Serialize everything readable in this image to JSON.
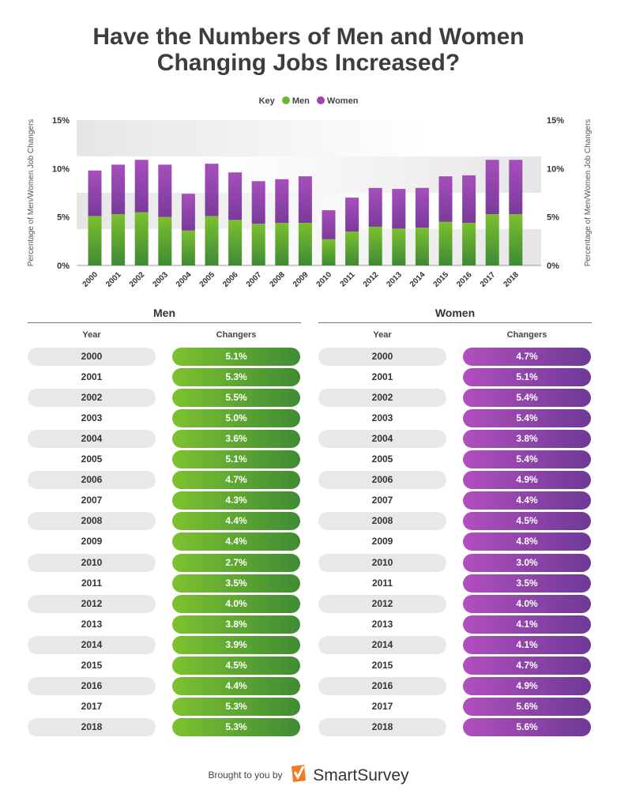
{
  "title_line1": "Have the Numbers of Men and Women",
  "title_line2": "Changing Jobs Increased?",
  "colors": {
    "men": "#6cb52f",
    "women": "#9c45b0"
  },
  "chart_data": {
    "type": "bar",
    "stacked": true,
    "key_label": "Key",
    "categories": [
      "2000",
      "2001",
      "2002",
      "2003",
      "2004",
      "2005",
      "2006",
      "2007",
      "2008",
      "2009",
      "2010",
      "2011",
      "2012",
      "2013",
      "2014",
      "2015",
      "2016",
      "2017",
      "2018"
    ],
    "series": [
      {
        "name": "Men",
        "values": [
          5.1,
          5.3,
          5.5,
          5.0,
          3.6,
          5.1,
          4.7,
          4.3,
          4.4,
          4.4,
          2.7,
          3.5,
          4.0,
          3.8,
          3.9,
          4.5,
          4.4,
          5.3,
          5.3
        ]
      },
      {
        "name": "Women",
        "values": [
          4.7,
          5.1,
          5.4,
          5.4,
          3.8,
          5.4,
          4.9,
          4.4,
          4.5,
          4.8,
          3.0,
          3.5,
          4.0,
          4.1,
          4.1,
          4.7,
          4.9,
          5.6,
          5.6
        ]
      }
    ],
    "ylabel": "Percentage of Men/Women Job Changers",
    "ylim": [
      0,
      15
    ],
    "yticks": [
      "0%",
      "5%",
      "10%",
      "15%"
    ],
    "legend": "top-center"
  },
  "tables": {
    "men": {
      "title": "Men",
      "year_header": "Year",
      "value_header": "Changers",
      "values": [
        "5.1%",
        "5.3%",
        "5.5%",
        "5.0%",
        "3.6%",
        "5.1%",
        "4.7%",
        "4.3%",
        "4.4%",
        "4.4%",
        "2.7%",
        "3.5%",
        "4.0%",
        "3.8%",
        "3.9%",
        "4.5%",
        "4.4%",
        "5.3%",
        "5.3%"
      ]
    },
    "women": {
      "title": "Women",
      "year_header": "Year",
      "value_header": "Changers",
      "values": [
        "4.7%",
        "5.1%",
        "5.4%",
        "5.4%",
        "3.8%",
        "5.4%",
        "4.9%",
        "4.4%",
        "4.5%",
        "4.8%",
        "3.0%",
        "3.5%",
        "4.0%",
        "4.1%",
        "4.1%",
        "4.7%",
        "4.9%",
        "5.6%",
        "5.6%"
      ]
    }
  },
  "footer": {
    "text": "Brought to you by",
    "brand": "SmartSurvey"
  }
}
